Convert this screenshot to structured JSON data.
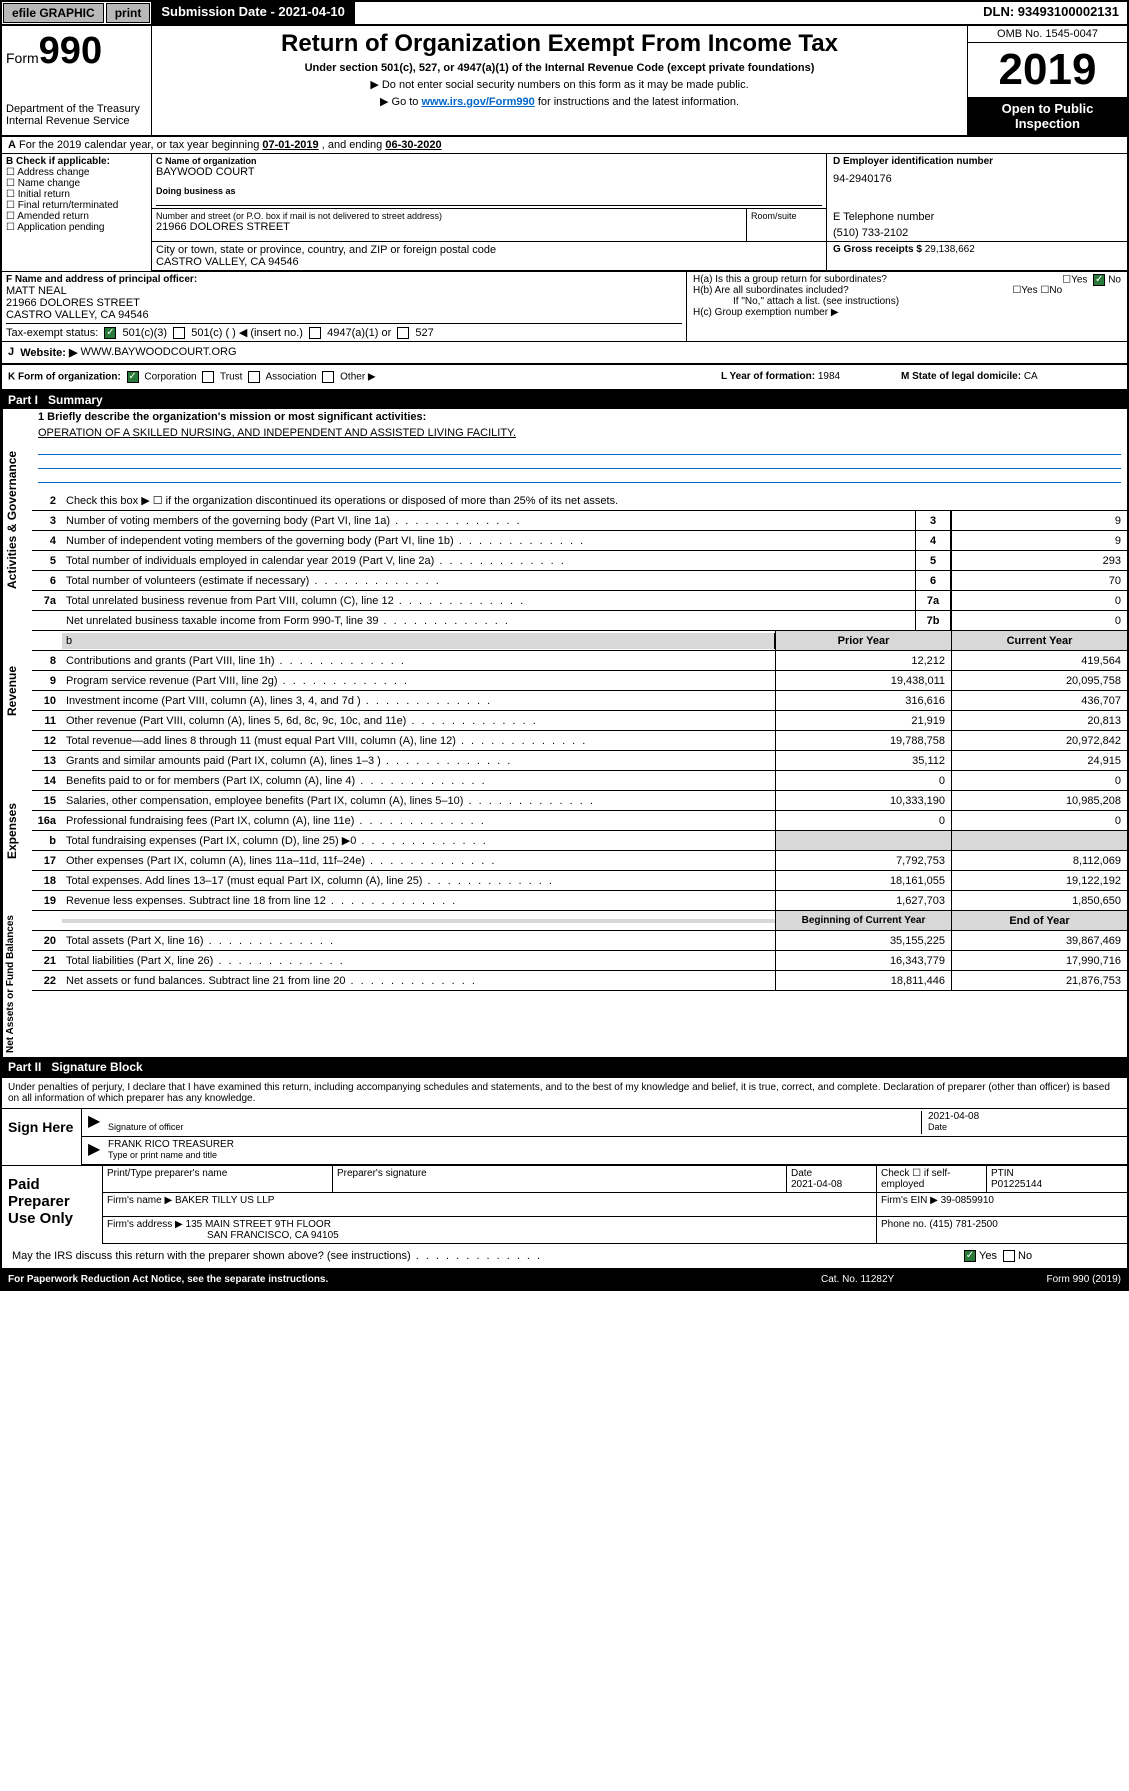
{
  "top": {
    "efile": "efile GRAPHIC",
    "print": "print",
    "sub_date_label": "Submission Date - 2021-04-10",
    "dln": "DLN: 93493100002131"
  },
  "header": {
    "form_prefix": "Form",
    "form_number": "990",
    "dept": "Department of the Treasury\nInternal Revenue Service",
    "title": "Return of Organization Exempt From Income Tax",
    "subtitle": "Under section 501(c), 527, or 4947(a)(1) of the Internal Revenue Code (except private foundations)",
    "note1": "▶ Do not enter social security numbers on this form as it may be made public.",
    "note2_pre": "▶ Go to ",
    "note2_link": "www.irs.gov/Form990",
    "note2_post": " for instructions and the latest information.",
    "omb": "OMB No. 1545-0047",
    "year": "2019",
    "open_public": "Open to Public Inspection"
  },
  "line_a": {
    "prefix": "A",
    "text": "For the 2019 calendar year, or tax year beginning ",
    "begin": "07-01-2019",
    "mid": " , and ending ",
    "end": "06-30-2020"
  },
  "section_b": {
    "label": "B Check if applicable:",
    "opts": [
      "Address change",
      "Name change",
      "Initial return",
      "Final return/terminated",
      "Amended return",
      "Application pending"
    ]
  },
  "section_c": {
    "name_lbl": "C Name of organization",
    "name_val": "BAYWOOD COURT",
    "dba_lbl": "Doing business as",
    "addr_lbl": "Number and street (or P.O. box if mail is not delivered to street address)",
    "addr_val": "21966 DOLORES STREET",
    "room_lbl": "Room/suite",
    "city_lbl": "City or town, state or province, country, and ZIP or foreign postal code",
    "city_val": "CASTRO VALLEY, CA  94546"
  },
  "section_d": {
    "lbl": "D Employer identification number",
    "val": "94-2940176"
  },
  "section_e": {
    "lbl": "E Telephone number",
    "val": "(510) 733-2102"
  },
  "section_g": {
    "lbl": "G Gross receipts $",
    "val": "29,138,662"
  },
  "section_f": {
    "lbl": "F  Name and address of principal officer:",
    "name": "MATT NEAL",
    "addr1": "21966 DOLORES STREET",
    "addr2": "CASTRO VALLEY, CA  94546"
  },
  "section_h": {
    "a": "H(a)  Is this a group return for subordinates?",
    "b": "H(b)  Are all subordinates included?",
    "b_note": "If \"No,\" attach a list. (see instructions)",
    "c": "H(c)  Group exemption number ▶"
  },
  "tax_exempt": {
    "lbl": "Tax-exempt status:",
    "opt1": "501(c)(3)",
    "opt2": "501(c) (  ) ◀ (insert no.)",
    "opt3": "4947(a)(1) or",
    "opt4": "527"
  },
  "section_j": {
    "lbl": "J",
    "website_lbl": "Website: ▶",
    "val": "WWW.BAYWOODCOURT.ORG"
  },
  "section_k": {
    "lbl": "K Form of organization:",
    "opts": [
      "Corporation",
      "Trust",
      "Association",
      "Other ▶"
    ]
  },
  "section_l": {
    "lbl": "L Year of formation:",
    "val": "1984"
  },
  "section_m": {
    "lbl": "M State of legal domicile:",
    "val": "CA"
  },
  "part1": {
    "num": "Part I",
    "title": "Summary"
  },
  "mission": {
    "lbl": "1  Briefly describe the organization's mission or most significant activities:",
    "text": "OPERATION OF A SKILLED NURSING, AND INDEPENDENT AND ASSISTED LIVING FACILITY."
  },
  "line2": "Check this box ▶ ☐  if the organization discontinued its operations or disposed of more than 25% of its net assets.",
  "sides": {
    "gov": "Activities & Governance",
    "rev": "Revenue",
    "exp": "Expenses",
    "net": "Net Assets or Fund Balances"
  },
  "rows_gov": [
    {
      "n": "3",
      "d": "Number of voting members of the governing body (Part VI, line 1a)",
      "box": "3",
      "v": "9"
    },
    {
      "n": "4",
      "d": "Number of independent voting members of the governing body (Part VI, line 1b)",
      "box": "4",
      "v": "9"
    },
    {
      "n": "5",
      "d": "Total number of individuals employed in calendar year 2019 (Part V, line 2a)",
      "box": "5",
      "v": "293"
    },
    {
      "n": "6",
      "d": "Total number of volunteers (estimate if necessary)",
      "box": "6",
      "v": "70"
    },
    {
      "n": "7a",
      "d": "Total unrelated business revenue from Part VIII, column (C), line 12",
      "box": "7a",
      "v": "0"
    },
    {
      "n": "",
      "d": "Net unrelated business taxable income from Form 990-T, line 39",
      "box": "7b",
      "v": "0"
    }
  ],
  "col_headers": {
    "prior": "Prior Year",
    "current": "Current Year"
  },
  "rows_rev": [
    {
      "n": "8",
      "d": "Contributions and grants (Part VIII, line 1h)",
      "p": "12,212",
      "c": "419,564"
    },
    {
      "n": "9",
      "d": "Program service revenue (Part VIII, line 2g)",
      "p": "19,438,011",
      "c": "20,095,758"
    },
    {
      "n": "10",
      "d": "Investment income (Part VIII, column (A), lines 3, 4, and 7d )",
      "p": "316,616",
      "c": "436,707"
    },
    {
      "n": "11",
      "d": "Other revenue (Part VIII, column (A), lines 5, 6d, 8c, 9c, 10c, and 11e)",
      "p": "21,919",
      "c": "20,813"
    },
    {
      "n": "12",
      "d": "Total revenue—add lines 8 through 11 (must equal Part VIII, column (A), line 12)",
      "p": "19,788,758",
      "c": "20,972,842"
    }
  ],
  "rows_exp": [
    {
      "n": "13",
      "d": "Grants and similar amounts paid (Part IX, column (A), lines 1–3 )",
      "p": "35,112",
      "c": "24,915"
    },
    {
      "n": "14",
      "d": "Benefits paid to or for members (Part IX, column (A), line 4)",
      "p": "0",
      "c": "0"
    },
    {
      "n": "15",
      "d": "Salaries, other compensation, employee benefits (Part IX, column (A), lines 5–10)",
      "p": "10,333,190",
      "c": "10,985,208"
    },
    {
      "n": "16a",
      "d": "Professional fundraising fees (Part IX, column (A), line 11e)",
      "p": "0",
      "c": "0"
    },
    {
      "n": "b",
      "d": "Total fundraising expenses (Part IX, column (D), line 25) ▶0",
      "p": "",
      "c": "",
      "gray": true
    },
    {
      "n": "17",
      "d": "Other expenses (Part IX, column (A), lines 11a–11d, 11f–24e)",
      "p": "7,792,753",
      "c": "8,112,069"
    },
    {
      "n": "18",
      "d": "Total expenses. Add lines 13–17 (must equal Part IX, column (A), line 25)",
      "p": "18,161,055",
      "c": "19,122,192"
    },
    {
      "n": "19",
      "d": "Revenue less expenses. Subtract line 18 from line 12",
      "p": "1,627,703",
      "c": "1,850,650"
    }
  ],
  "net_headers": {
    "begin": "Beginning of Current Year",
    "end": "End of Year"
  },
  "rows_net": [
    {
      "n": "20",
      "d": "Total assets (Part X, line 16)",
      "p": "35,155,225",
      "c": "39,867,469"
    },
    {
      "n": "21",
      "d": "Total liabilities (Part X, line 26)",
      "p": "16,343,779",
      "c": "17,990,716"
    },
    {
      "n": "22",
      "d": "Net assets or fund balances. Subtract line 21 from line 20",
      "p": "18,811,446",
      "c": "21,876,753"
    }
  ],
  "part2": {
    "num": "Part II",
    "title": "Signature Block"
  },
  "sig": {
    "perjury": "Under penalties of perjury, I declare that I have examined this return, including accompanying schedules and statements, and to the best of my knowledge and belief, it is true, correct, and complete. Declaration of preparer (other than officer) is based on all information of which preparer has any knowledge.",
    "sign_here": "Sign Here",
    "sig_officer": "Signature of officer",
    "date_val": "2021-04-08",
    "date_lbl": "Date",
    "name_title": "FRANK RICO TREASURER",
    "name_lbl": "Type or print name and title"
  },
  "paid": {
    "title": "Paid Preparer Use Only",
    "prep_name_lbl": "Print/Type preparer's name",
    "prep_sig_lbl": "Preparer's signature",
    "date_lbl": "Date",
    "date_val": "2021-04-08",
    "check_lbl": "Check ☐ if self-employed",
    "ptin_lbl": "PTIN",
    "ptin_val": "P01225144",
    "firm_name_lbl": "Firm's name   ▶",
    "firm_name": "BAKER TILLY US LLP",
    "firm_ein_lbl": "Firm's EIN ▶",
    "firm_ein": "39-0859910",
    "firm_addr_lbl": "Firm's address ▶",
    "firm_addr1": "135 MAIN STREET 9TH FLOOR",
    "firm_addr2": "SAN FRANCISCO, CA  94105",
    "phone_lbl": "Phone no.",
    "phone": "(415) 781-2500"
  },
  "discuss": "May the IRS discuss this return with the preparer shown above? (see instructions)",
  "footer": {
    "left": "For Paperwork Reduction Act Notice, see the separate instructions.",
    "mid": "Cat. No. 11282Y",
    "right": "Form 990 (2019)"
  }
}
